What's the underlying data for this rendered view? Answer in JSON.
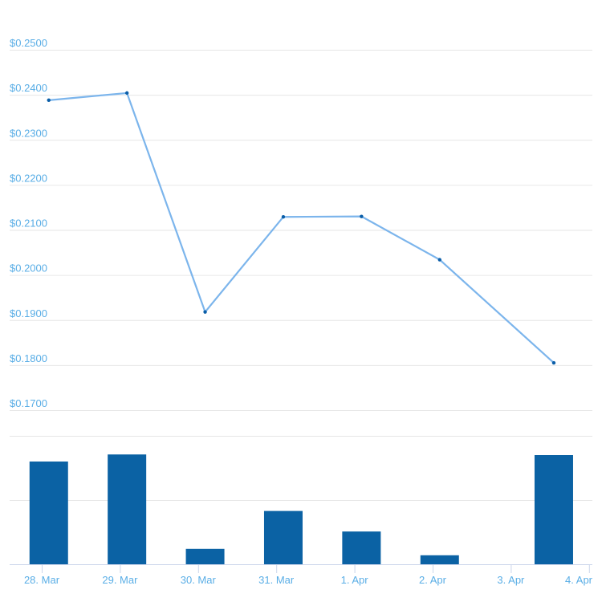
{
  "chart_data": {
    "type": "line",
    "price": {
      "name": "Price",
      "ylim": [
        0.17,
        0.25
      ],
      "yticks": [
        0.17,
        0.18,
        0.19,
        0.2,
        0.21,
        0.22,
        0.23,
        0.24,
        0.25
      ],
      "ytick_labels": [
        "$0.1700",
        "$0.1800",
        "$0.1900",
        "$0.2000",
        "$0.2100",
        "$0.2200",
        "$0.2300",
        "$0.2400",
        "$0.2500"
      ],
      "x": [
        0.09,
        1.09,
        2.09,
        3.09,
        4.09,
        5.09,
        6.55
      ],
      "values": [
        0.2388,
        0.2404,
        0.1918,
        0.2129,
        0.213,
        0.2034,
        0.1805
      ]
    },
    "volume": {
      "type": "bar",
      "name": "Volume",
      "ylim": [
        0,
        2
      ],
      "x": [
        0.09,
        1.09,
        2.09,
        3.09,
        4.09,
        5.09,
        6.55
      ],
      "values": [
        1.6,
        1.71,
        0.24,
        0.83,
        0.51,
        0.14,
        1.7
      ]
    },
    "xticks": [
      0,
      1,
      2,
      3,
      4,
      5,
      6,
      7
    ],
    "xtick_labels": [
      "28. Mar",
      "29. Mar",
      "30. Mar",
      "31. Mar",
      "1. Apr",
      "2. Apr",
      "3. Apr",
      "4. Apr"
    ],
    "colors": {
      "line": "#7cb5ec",
      "marker": "#0b5ea8",
      "bar": "#0b62a4",
      "label": "#5aaee6",
      "grid": "#e6e6e6",
      "axis": "#ccd6eb"
    }
  }
}
